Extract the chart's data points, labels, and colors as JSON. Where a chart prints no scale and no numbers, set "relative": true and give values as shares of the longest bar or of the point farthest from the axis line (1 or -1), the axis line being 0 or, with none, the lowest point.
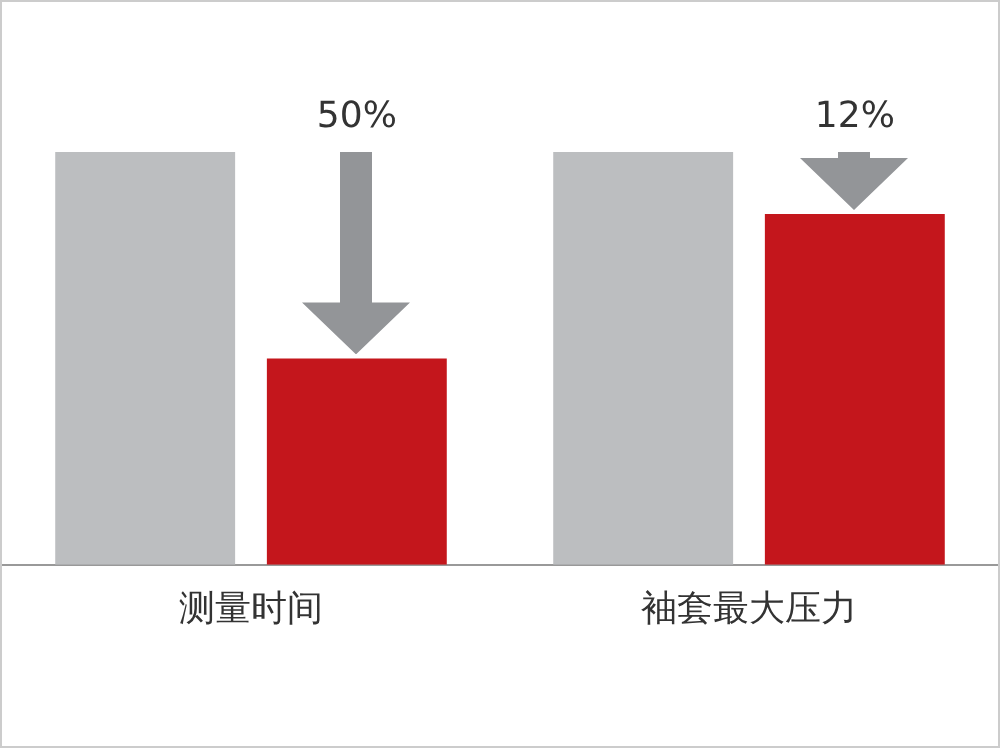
{
  "chart_data": {
    "type": "bar",
    "relative": true,
    "categories": [
      "测量时间",
      "袖套最大压力"
    ],
    "series": [
      {
        "color": "#bcbec0",
        "values": [
          1,
          1
        ]
      },
      {
        "color": "#c4161c",
        "values": [
          0.5,
          0.85
        ]
      }
    ],
    "annotations": [
      "50%",
      "12%"
    ],
    "legend": false,
    "grid": false
  }
}
